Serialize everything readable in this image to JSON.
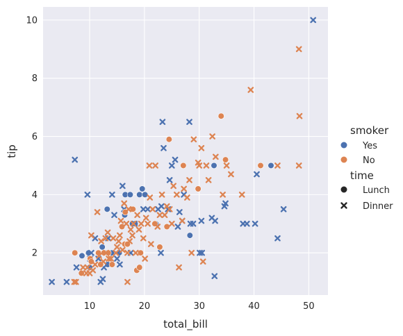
{
  "chart_data": {
    "type": "scatter",
    "xlabel": "total_bill",
    "ylabel": "tip",
    "xlim": [
      1.5,
      53.5
    ],
    "ylim": [
      0.55,
      10.45
    ],
    "xticks": [
      10,
      20,
      30,
      40,
      50
    ],
    "yticks": [
      2,
      4,
      6,
      8,
      10
    ],
    "grid": true,
    "legend_position": "right",
    "legend": {
      "hue_title": "smoker",
      "hue_entries": [
        {
          "label": "Yes",
          "color": "#4c72b0"
        },
        {
          "label": "No",
          "color": "#dd8452"
        }
      ],
      "style_title": "time",
      "style_entries": [
        {
          "label": "Lunch",
          "marker": "circle"
        },
        {
          "label": "Dinner",
          "marker": "x"
        }
      ]
    },
    "series": [
      {
        "smoker": "Yes",
        "time": "Lunch",
        "color": "#4c72b0",
        "marker": "circle",
        "points": [
          [
            9.8,
            2.0
          ],
          [
            12.3,
            2.2
          ],
          [
            13.2,
            3.5
          ],
          [
            13.3,
            1.6
          ],
          [
            14.0,
            2.0
          ],
          [
            15.4,
            2.0
          ],
          [
            16.4,
            3.3
          ],
          [
            16.5,
            4.0
          ],
          [
            17.4,
            4.0
          ],
          [
            17.8,
            3.0
          ],
          [
            18.3,
            3.0
          ],
          [
            19.1,
            4.0
          ],
          [
            19.6,
            4.2
          ],
          [
            20.1,
            4.0
          ],
          [
            22.1,
            3.0
          ],
          [
            28.3,
            2.6
          ],
          [
            32.7,
            5.0
          ],
          [
            43.1,
            5.0
          ],
          [
            10.0,
            1.5
          ],
          [
            13.0,
            2.0
          ],
          [
            8.6,
            1.9
          ]
        ]
      },
      {
        "smoker": "Yes",
        "time": "Dinner",
        "color": "#4c72b0",
        "marker": "x",
        "points": [
          [
            3.1,
            1.0
          ],
          [
            5.8,
            1.0
          ],
          [
            7.3,
            5.2
          ],
          [
            7.6,
            1.5
          ],
          [
            9.6,
            4.0
          ],
          [
            10.1,
            1.8
          ],
          [
            10.3,
            2.0
          ],
          [
            11.0,
            2.5
          ],
          [
            11.6,
            1.8
          ],
          [
            12.0,
            1.0
          ],
          [
            12.4,
            1.1
          ],
          [
            12.6,
            1.5
          ],
          [
            13.4,
            2.5
          ],
          [
            14.1,
            4.0
          ],
          [
            14.5,
            3.3
          ],
          [
            15.0,
            1.8
          ],
          [
            15.5,
            1.6
          ],
          [
            16.0,
            4.3
          ],
          [
            16.3,
            3.5
          ],
          [
            17.5,
            2.0
          ],
          [
            18.2,
            3.0
          ],
          [
            19.8,
            3.5
          ],
          [
            20.6,
            3.5
          ],
          [
            22.5,
            3.5
          ],
          [
            23.0,
            2.0
          ],
          [
            23.3,
            6.5
          ],
          [
            23.5,
            5.6
          ],
          [
            24.3,
            3.5
          ],
          [
            24.6,
            4.5
          ],
          [
            25.0,
            5.0
          ],
          [
            25.6,
            5.2
          ],
          [
            26.4,
            3.4
          ],
          [
            26.9,
            3.1
          ],
          [
            27.2,
            4.0
          ],
          [
            28.2,
            6.5
          ],
          [
            28.4,
            3.0
          ],
          [
            28.9,
            3.0
          ],
          [
            30.1,
            2.0
          ],
          [
            30.4,
            3.1
          ],
          [
            30.5,
            2.0
          ],
          [
            32.3,
            3.2
          ],
          [
            32.8,
            1.2
          ],
          [
            32.9,
            3.1
          ],
          [
            34.6,
            3.6
          ],
          [
            34.8,
            3.7
          ],
          [
            38.0,
            3.0
          ],
          [
            38.7,
            3.0
          ],
          [
            40.2,
            3.0
          ],
          [
            40.5,
            4.7
          ],
          [
            44.3,
            2.5
          ],
          [
            45.4,
            3.5
          ],
          [
            50.8,
            10.0
          ],
          [
            23.1,
            3.6
          ],
          [
            26.1,
            2.9
          ]
        ]
      },
      {
        "smoker": "No",
        "time": "Lunch",
        "color": "#dd8452",
        "marker": "circle",
        "points": [
          [
            7.3,
            2.0
          ],
          [
            8.5,
            1.3
          ],
          [
            10.1,
            1.8
          ],
          [
            10.3,
            1.7
          ],
          [
            11.6,
            2.0
          ],
          [
            12.6,
            2.0
          ],
          [
            13.4,
            2.0
          ],
          [
            14.1,
            1.6
          ],
          [
            16.4,
            2.3
          ],
          [
            16.5,
            3.4
          ],
          [
            17.9,
            3.5
          ],
          [
            18.6,
            1.4
          ],
          [
            19.1,
            1.5
          ],
          [
            21.9,
            3.0
          ],
          [
            24.1,
            2.9
          ],
          [
            24.5,
            5.9
          ],
          [
            27.1,
            5.0
          ],
          [
            29.8,
            4.2
          ],
          [
            34.0,
            6.7
          ],
          [
            34.8,
            5.2
          ],
          [
            41.2,
            5.0
          ],
          [
            12.0,
            1.6
          ],
          [
            15.9,
            2.9
          ],
          [
            16.9,
            2.3
          ],
          [
            19.3,
            2.0
          ],
          [
            22.8,
            2.2
          ]
        ]
      },
      {
        "smoker": "No",
        "time": "Dinner",
        "color": "#dd8452",
        "marker": "x",
        "points": [
          [
            7.2,
            1.0
          ],
          [
            8.8,
            1.5
          ],
          [
            9.4,
            1.3
          ],
          [
            9.6,
            1.5
          ],
          [
            10.0,
            1.3
          ],
          [
            10.3,
            2.6
          ],
          [
            10.6,
            1.4
          ],
          [
            11.0,
            1.6
          ],
          [
            11.4,
            3.4
          ],
          [
            11.7,
            1.9
          ],
          [
            12.1,
            2.4
          ],
          [
            12.5,
            1.7
          ],
          [
            12.9,
            2.5
          ],
          [
            13.0,
            2.0
          ],
          [
            13.3,
            2.7
          ],
          [
            13.5,
            1.8
          ],
          [
            13.9,
            1.8
          ],
          [
            14.3,
            2.5
          ],
          [
            14.8,
            2.0
          ],
          [
            15.0,
            2.2
          ],
          [
            15.3,
            2.4
          ],
          [
            15.5,
            2.6
          ],
          [
            15.7,
            3.1
          ],
          [
            16.0,
            2.1
          ],
          [
            16.3,
            3.7
          ],
          [
            16.7,
            3.0
          ],
          [
            16.9,
            2.0
          ],
          [
            17.1,
            3.5
          ],
          [
            17.3,
            2.4
          ],
          [
            17.5,
            2.8
          ],
          [
            17.8,
            2.6
          ],
          [
            18.0,
            3.0
          ],
          [
            18.4,
            2.0
          ],
          [
            18.7,
            3.3
          ],
          [
            19.0,
            2.8
          ],
          [
            19.4,
            3.0
          ],
          [
            19.8,
            2.5
          ],
          [
            20.1,
            1.8
          ],
          [
            20.3,
            3.2
          ],
          [
            20.6,
            3.0
          ],
          [
            20.9,
            5.0
          ],
          [
            21.2,
            2.3
          ],
          [
            21.5,
            3.5
          ],
          [
            22.0,
            5.0
          ],
          [
            22.4,
            2.9
          ],
          [
            22.8,
            3.3
          ],
          [
            23.2,
            4.0
          ],
          [
            23.7,
            3.3
          ],
          [
            24.1,
            3.6
          ],
          [
            24.6,
            3.5
          ],
          [
            25.0,
            3.0
          ],
          [
            25.3,
            4.3
          ],
          [
            25.9,
            4.0
          ],
          [
            26.3,
            1.5
          ],
          [
            26.9,
            3.1
          ],
          [
            27.2,
            4.2
          ],
          [
            28.2,
            4.5
          ],
          [
            28.6,
            2.0
          ],
          [
            29.0,
            5.9
          ],
          [
            29.8,
            5.1
          ],
          [
            30.0,
            5.0
          ],
          [
            30.4,
            5.6
          ],
          [
            31.3,
            5.0
          ],
          [
            31.7,
            4.5
          ],
          [
            32.4,
            6.0
          ],
          [
            33.0,
            5.3
          ],
          [
            34.3,
            4.0
          ],
          [
            35.0,
            5.0
          ],
          [
            35.8,
            4.7
          ],
          [
            37.8,
            4.0
          ],
          [
            39.4,
            7.6
          ],
          [
            44.3,
            5.0
          ],
          [
            48.2,
            9.0
          ],
          [
            48.3,
            6.7
          ],
          [
            48.2,
            5.0
          ],
          [
            7.5,
            1.0
          ],
          [
            16.9,
            1.0
          ],
          [
            30.7,
            1.7
          ],
          [
            27.8,
            3.9
          ],
          [
            21.0,
            3.9
          ]
        ]
      }
    ]
  }
}
